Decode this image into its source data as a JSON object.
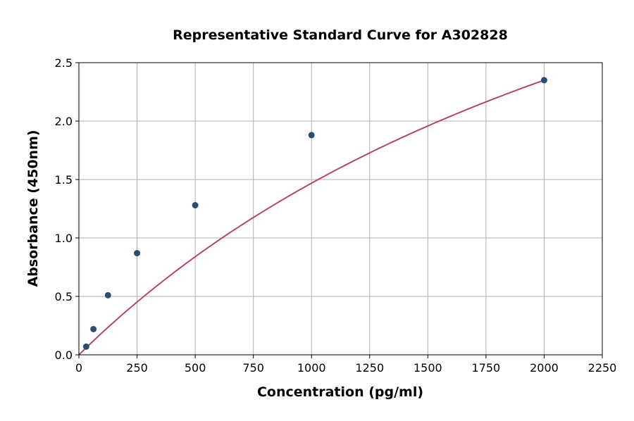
{
  "chart_data": {
    "type": "scatter",
    "title": "Representative Standard Curve for A302828",
    "xlabel": "Concentration (pg/ml)",
    "ylabel": "Absorbance (450nm)",
    "xlim": [
      0,
      2250
    ],
    "ylim": [
      0,
      2.5
    ],
    "xticks": [
      0,
      250,
      500,
      750,
      1000,
      1250,
      1500,
      1750,
      2000,
      2250
    ],
    "yticks": [
      0.0,
      0.5,
      1.0,
      1.5,
      2.0,
      2.5
    ],
    "grid": true,
    "points": [
      {
        "x": 31.25,
        "y": 0.07
      },
      {
        "x": 62.5,
        "y": 0.22
      },
      {
        "x": 125,
        "y": 0.51
      },
      {
        "x": 250,
        "y": 0.87
      },
      {
        "x": 500,
        "y": 1.28
      },
      {
        "x": 1000,
        "y": 1.88
      },
      {
        "x": 2000,
        "y": 2.35
      }
    ],
    "fit_curve": true,
    "colors": {
      "points": "#2a4d75",
      "curve": "#b5466b",
      "grid": "#b0b0b0"
    }
  }
}
